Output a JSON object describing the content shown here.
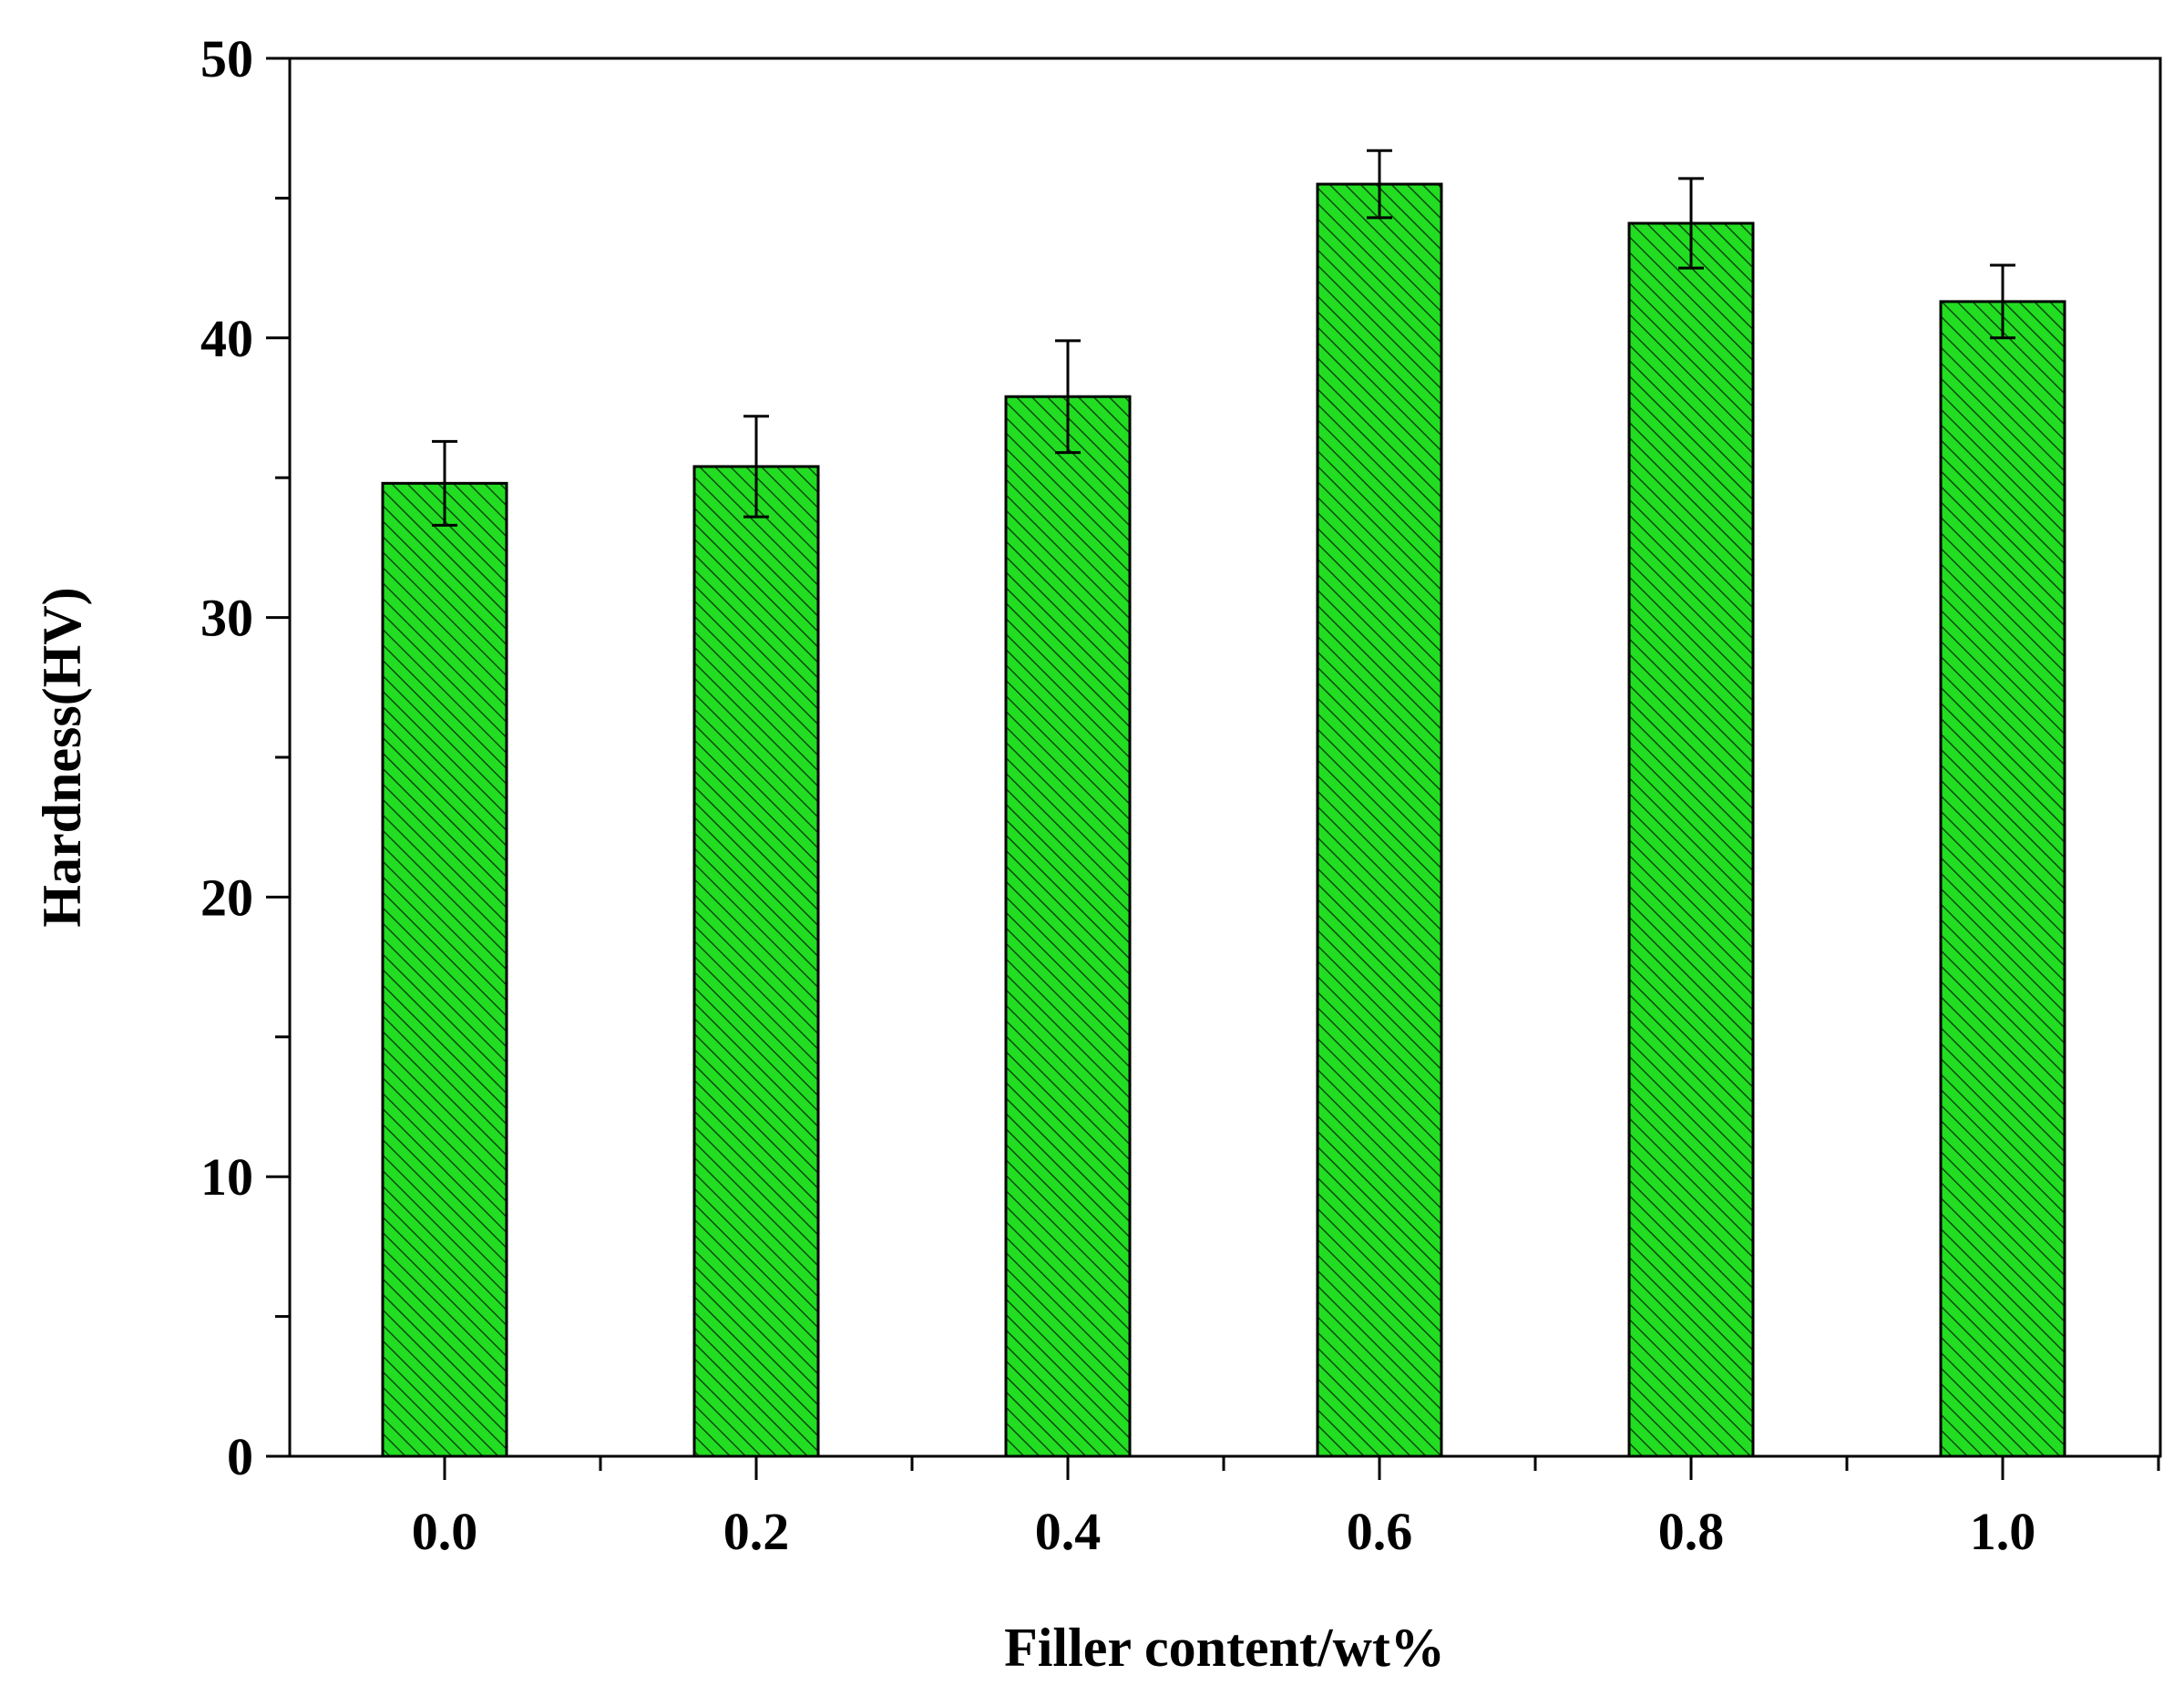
{
  "chart_data": {
    "type": "bar",
    "title": "",
    "xlabel": "Filler content/wt%",
    "ylabel": "Hardness(HV)",
    "categories": [
      "0.0",
      "0.2",
      "0.4",
      "0.6",
      "0.8",
      "1.0"
    ],
    "values": [
      34.8,
      35.4,
      37.9,
      45.5,
      44.1,
      41.3
    ],
    "errors": [
      1.5,
      1.8,
      2.0,
      1.2,
      1.6,
      1.3
    ],
    "ylim": [
      0,
      50
    ],
    "yticks": [
      "0",
      "10",
      "20",
      "30",
      "40",
      "50"
    ],
    "grid": false,
    "legend": "none",
    "bar_color": "#22dd22",
    "bar_hatch": "diagonal",
    "edge_color": "#000000"
  }
}
